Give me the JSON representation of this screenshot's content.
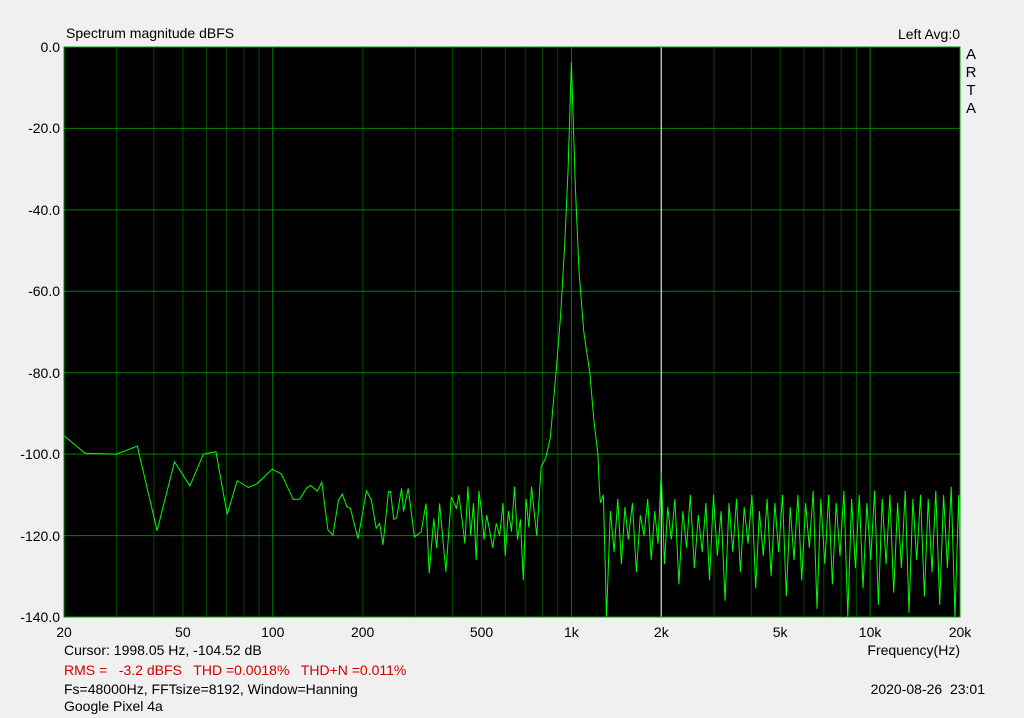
{
  "header": {
    "title": "Spectrum magnitude dBFS",
    "channel": "Left  Avg:0",
    "logo_letters": [
      "A",
      "R",
      "T",
      "A"
    ]
  },
  "footer": {
    "cursor": "Cursor: 1998.05 Hz, -104.52 dB",
    "measurements": "RMS =   -3.2 dBFS   THD =0.0018%   THD+N =0.011%",
    "settings": "Fs=48000Hz, FFTsize=8192, Window=Hanning",
    "device": "Google Pixel 4a",
    "timestamp": "2020-08-26  23:01"
  },
  "colors": {
    "background": "#000000",
    "trace": "#00ff00",
    "grid_major": "#008000",
    "grid_minor": "#004a00",
    "cursor": "#ffffff",
    "frame": "#00a000",
    "measurement_text": "#d00000"
  },
  "chart_data": {
    "type": "line",
    "title": "Spectrum magnitude dBFS",
    "xlabel": "Frequency(Hz)",
    "ylabel": "",
    "xscale": "log",
    "xlim": [
      20,
      20000
    ],
    "ylim": [
      -140,
      0
    ],
    "grid": true,
    "x_ticks": [
      {
        "v": 20,
        "label": "20"
      },
      {
        "v": 50,
        "label": "50"
      },
      {
        "v": 100,
        "label": "100"
      },
      {
        "v": 200,
        "label": "200"
      },
      {
        "v": 500,
        "label": "500"
      },
      {
        "v": 1000,
        "label": "1k"
      },
      {
        "v": 2000,
        "label": "2k"
      },
      {
        "v": 5000,
        "label": "5k"
      },
      {
        "v": 10000,
        "label": "10k"
      },
      {
        "v": 20000,
        "label": "20k"
      }
    ],
    "y_ticks": [
      {
        "v": 0,
        "label": "0.0"
      },
      {
        "v": -20,
        "label": "-20.0"
      },
      {
        "v": -40,
        "label": "-40.0"
      },
      {
        "v": -60,
        "label": "-60.0"
      },
      {
        "v": -80,
        "label": "-80.0"
      },
      {
        "v": -100,
        "label": "-100.0"
      },
      {
        "v": -120,
        "label": "-120.0"
      },
      {
        "v": -140,
        "label": "-140.0"
      }
    ],
    "cursor_frequency": 1998.05,
    "series": [
      {
        "points": [
          [
            20,
            -95.5
          ],
          [
            23.5,
            -99.8
          ],
          [
            30,
            -100
          ],
          [
            35.2,
            -98
          ],
          [
            41,
            -118.8
          ],
          [
            46.9,
            -101.9
          ],
          [
            52.8,
            -107.8
          ],
          [
            58.6,
            -100
          ],
          [
            64.5,
            -99.4
          ],
          [
            70.4,
            -114.8
          ],
          [
            76,
            -106.5
          ],
          [
            82.8,
            -108.2
          ],
          [
            88.4,
            -107.3
          ],
          [
            99.6,
            -103.7
          ],
          [
            107,
            -104.9
          ],
          [
            117,
            -111.1
          ],
          [
            123,
            -111.1
          ],
          [
            130,
            -108.3
          ],
          [
            134,
            -107.7
          ],
          [
            141,
            -109.1
          ],
          [
            146,
            -106.9
          ],
          [
            153,
            -118.6
          ],
          [
            159,
            -119.9
          ],
          [
            166,
            -111.3
          ],
          [
            171,
            -109.8
          ],
          [
            177,
            -112.9
          ],
          [
            182,
            -113.3
          ],
          [
            193,
            -120.8
          ],
          [
            206,
            -109
          ],
          [
            214,
            -111.3
          ],
          [
            222,
            -118.2
          ],
          [
            228,
            -117
          ],
          [
            234,
            -122.3
          ],
          [
            244,
            -109.2
          ],
          [
            248,
            -109.2
          ],
          [
            254,
            -116
          ],
          [
            260,
            -115.6
          ],
          [
            270,
            -108.4
          ],
          [
            274,
            -114.1
          ],
          [
            284,
            -108.4
          ],
          [
            298,
            -120.3
          ],
          [
            314,
            -119.1
          ],
          [
            326,
            -112.1
          ],
          [
            334,
            -129.3
          ],
          [
            346,
            -115.8
          ],
          [
            354,
            -123.1
          ],
          [
            362,
            -112.1
          ],
          [
            380,
            -128.9
          ],
          [
            396,
            -110.5
          ],
          [
            412,
            -113.3
          ],
          [
            420,
            -110
          ],
          [
            430,
            -116
          ],
          [
            440,
            -122
          ],
          [
            450,
            -108
          ],
          [
            460,
            -120
          ],
          [
            470,
            -112
          ],
          [
            480,
            -126
          ],
          [
            490,
            -109
          ],
          [
            500,
            -114
          ],
          [
            510,
            -121
          ],
          [
            520,
            -115
          ],
          [
            530,
            -118
          ],
          [
            545,
            -123
          ],
          [
            560,
            -117
          ],
          [
            575,
            -120
          ],
          [
            590,
            -112
          ],
          [
            600,
            -125
          ],
          [
            615,
            -114
          ],
          [
            630,
            -119
          ],
          [
            645,
            -108
          ],
          [
            660,
            -121
          ],
          [
            675,
            -116
          ],
          [
            690,
            -131
          ],
          [
            705,
            -111
          ],
          [
            720,
            -118
          ],
          [
            735,
            -108
          ],
          [
            750,
            -114
          ],
          [
            765,
            -120
          ],
          [
            792,
            -103
          ],
          [
            820,
            -101
          ],
          [
            850,
            -96
          ],
          [
            888,
            -80
          ],
          [
            920,
            -66
          ],
          [
            950,
            -48
          ],
          [
            975,
            -30
          ],
          [
            990,
            -14
          ],
          [
            1000,
            -3.7
          ],
          [
            1010,
            -14
          ],
          [
            1030,
            -34
          ],
          [
            1060,
            -55
          ],
          [
            1100,
            -70
          ],
          [
            1152,
            -80
          ],
          [
            1190,
            -92
          ],
          [
            1226,
            -100
          ],
          [
            1240,
            -108
          ],
          [
            1250,
            -112
          ],
          [
            1280,
            -110
          ],
          [
            1310,
            -140
          ],
          [
            1350,
            -114
          ],
          [
            1390,
            -124
          ],
          [
            1430,
            -111
          ],
          [
            1470,
            -127
          ],
          [
            1510,
            -113
          ],
          [
            1550,
            -121
          ],
          [
            1600,
            -112
          ],
          [
            1650,
            -129
          ],
          [
            1700,
            -115
          ],
          [
            1750,
            -120
          ],
          [
            1800,
            -111
          ],
          [
            1850,
            -126
          ],
          [
            1900,
            -114
          ],
          [
            1950,
            -122
          ],
          [
            1998,
            -104.5
          ],
          [
            2050,
            -127
          ],
          [
            2100,
            -113
          ],
          [
            2160,
            -121
          ],
          [
            2220,
            -111
          ],
          [
            2290,
            -132
          ],
          [
            2360,
            -114
          ],
          [
            2430,
            -123
          ],
          [
            2500,
            -110
          ],
          [
            2580,
            -128
          ],
          [
            2660,
            -115
          ],
          [
            2740,
            -124
          ],
          [
            2820,
            -112
          ],
          [
            2900,
            -131
          ],
          [
            2990,
            -110
          ],
          [
            3080,
            -125
          ],
          [
            3170,
            -114
          ],
          [
            3270,
            -136
          ],
          [
            3370,
            -112
          ],
          [
            3470,
            -124
          ],
          [
            3570,
            -111
          ],
          [
            3680,
            -129
          ],
          [
            3790,
            -113
          ],
          [
            3900,
            -122
          ],
          [
            4020,
            -110
          ],
          [
            4140,
            -133
          ],
          [
            4260,
            -114
          ],
          [
            4390,
            -125
          ],
          [
            4520,
            -111
          ],
          [
            4660,
            -130
          ],
          [
            4800,
            -112
          ],
          [
            4940,
            -124
          ],
          [
            5090,
            -110
          ],
          [
            5240,
            -135
          ],
          [
            5400,
            -113
          ],
          [
            5560,
            -126
          ],
          [
            5730,
            -110
          ],
          [
            5900,
            -131
          ],
          [
            6080,
            -112
          ],
          [
            6260,
            -123
          ],
          [
            6450,
            -109
          ],
          [
            6640,
            -138
          ],
          [
            6840,
            -111
          ],
          [
            7050,
            -127
          ],
          [
            7260,
            -110
          ],
          [
            7480,
            -132
          ],
          [
            7700,
            -112
          ],
          [
            7930,
            -125
          ],
          [
            8170,
            -109
          ],
          [
            8420,
            -140
          ],
          [
            8670,
            -111
          ],
          [
            8930,
            -128
          ],
          [
            9200,
            -110
          ],
          [
            9470,
            -133
          ],
          [
            9760,
            -112
          ],
          [
            10050,
            -126
          ],
          [
            10350,
            -109
          ],
          [
            10660,
            -137
          ],
          [
            10980,
            -111
          ],
          [
            11310,
            -127
          ],
          [
            11650,
            -110
          ],
          [
            12000,
            -134
          ],
          [
            12360,
            -112
          ],
          [
            12730,
            -128
          ],
          [
            13110,
            -109
          ],
          [
            13500,
            -139
          ],
          [
            13910,
            -111
          ],
          [
            14320,
            -126
          ],
          [
            14750,
            -110
          ],
          [
            15200,
            -135
          ],
          [
            15650,
            -111
          ],
          [
            16120,
            -129
          ],
          [
            16600,
            -109
          ],
          [
            17100,
            -137
          ],
          [
            17620,
            -110
          ],
          [
            18150,
            -128
          ],
          [
            18690,
            -108
          ],
          [
            19250,
            -140
          ],
          [
            19800,
            -110
          ],
          [
            20000,
            -125
          ]
        ]
      }
    ]
  }
}
